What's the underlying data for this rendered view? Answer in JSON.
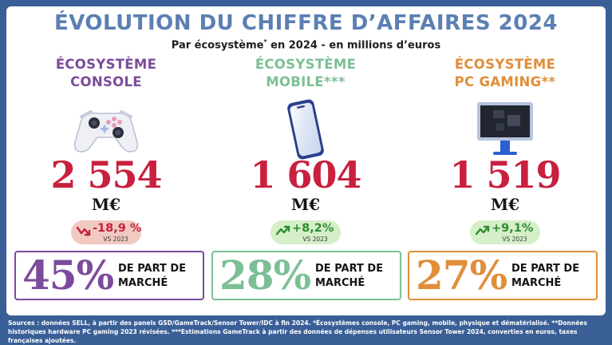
{
  "title": "ÉVOLUTION DU CHIFFRE D’AFFAIRES 2024",
  "subtitle": {
    "before": "Par écosystème",
    "mark": "*",
    "after": " en 2024 - en millions d’euros"
  },
  "colors": {
    "console": "#7b4b9c",
    "mobile": "#7cbf95",
    "pc": "#e08e3a",
    "amount": "#c8203e",
    "decline": "#c8203e",
    "growth": "#2e8d32",
    "background": "#3a5f97"
  },
  "ecosystems": [
    {
      "line1": "ÉCOSYSTÈME",
      "line2": "CONSOLE",
      "icon": "gamepad-icon",
      "amount": "2 554",
      "unit": "M€",
      "change": "-18,9 %",
      "change_direction": "down",
      "vs": "VS 2023",
      "share": "45%",
      "share_label": "DE PART DE MARCHÉ"
    },
    {
      "line1": "ÉCOSYSTÈME",
      "line2": "MOBILE***",
      "icon": "smartphone-icon",
      "amount": "1 604",
      "unit": "M€",
      "change": "+8,2%",
      "change_direction": "up",
      "vs": "VS 2023",
      "share": "28%",
      "share_label": "DE PART DE MARCHÉ"
    },
    {
      "line1": "ÉCOSYSTÈME",
      "line2": "PC GAMING**",
      "icon": "computer-monitor-icon",
      "amount": "1 519",
      "unit": "M€",
      "change": "+9,1%",
      "change_direction": "up",
      "vs": "VS 2023",
      "share": "27%",
      "share_label": "DE PART DE MARCHÉ"
    }
  ],
  "sources": "Sources : données SELL, à partir des panels GSD/GameTrack/Sensor Tower/IDC à fin 2024. *Écosystèmes console, PC gaming, mobile, physique et dématérialisé. **Données historiques hardware PC gaming 2023 révisées. ***Estimations GameTrack à partir des données de dépenses utilisateurs Sensor Tower 2024, converties en euros, taxes françaises ajoutées.",
  "chart_data": {
    "type": "bar",
    "title": "ÉVOLUTION DU CHIFFRE D’AFFAIRES 2024",
    "subtitle": "Par écosystème* en 2024 - en millions d’euros",
    "categories": [
      "ÉCOSYSTÈME CONSOLE",
      "ÉCOSYSTÈME MOBILE***",
      "ÉCOSYSTÈME PC GAMING**"
    ],
    "values": [
      2554,
      1604,
      1519
    ],
    "unit": "M€",
    "change_vs_2023_percent": [
      -18.9,
      8.2,
      9.1
    ],
    "market_share_percent": [
      45,
      28,
      27
    ]
  }
}
